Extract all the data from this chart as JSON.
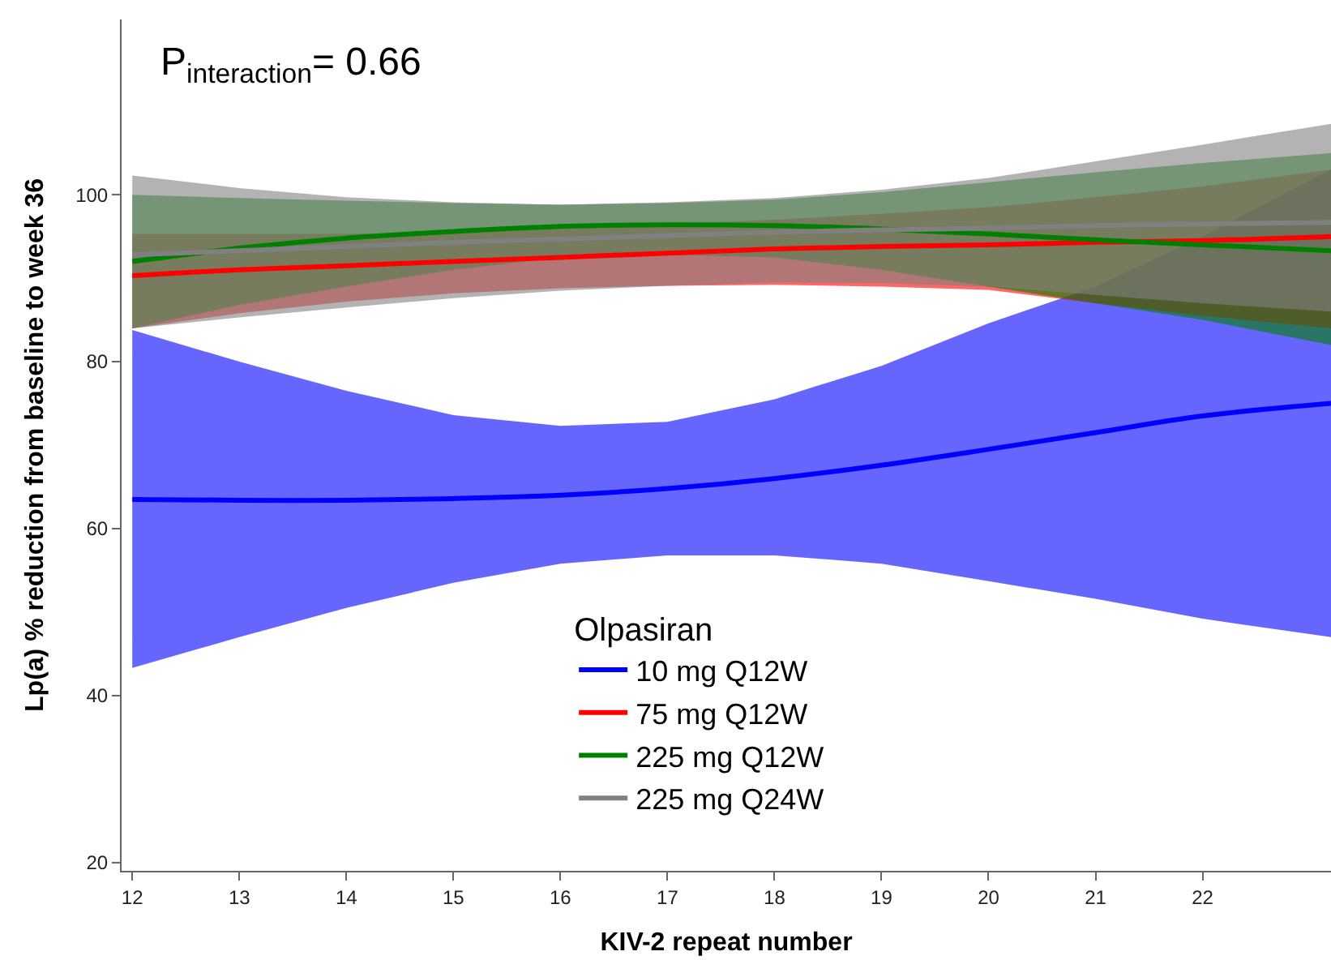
{
  "chart_data": {
    "type": "line",
    "xlabel": "KIV-2 repeat number",
    "ylabel": "Lp(a) % reduction from baseline to week 36",
    "legend_title": "Olpasiran",
    "annotations": [
      "P$_{interaction}$= 0.66"
    ],
    "x": [
      12,
      13,
      14,
      15,
      16,
      17,
      18,
      19,
      20,
      21,
      22,
      23.2
    ],
    "xlim": [
      11.9,
      23.2
    ],
    "xticks": [
      12,
      13,
      14,
      15,
      16,
      17,
      18,
      19,
      20,
      21,
      22
    ],
    "ylim": [
      19,
      121
    ],
    "yticks": [
      20,
      40,
      60,
      80,
      100
    ],
    "legend": "bottom",
    "marker": "none",
    "line_style": "solid",
    "series": [
      {
        "name": "10 mg Q12W",
        "color": "#0000ff",
        "values": [
          63.5,
          63.4,
          63.4,
          63.6,
          64,
          64.8,
          66,
          67.6,
          69.5,
          71.5,
          73.5,
          75
        ],
        "lower": [
          43.3,
          47,
          50.5,
          53.5,
          55.8,
          56.8,
          56.8,
          55.8,
          53.7,
          51.6,
          49.2,
          47
        ],
        "upper": [
          83.8,
          80,
          76.5,
          73.6,
          72.3,
          72.8,
          75.5,
          79.5,
          84.6,
          89,
          95,
          103
        ]
      },
      {
        "name": "75 mg Q12W",
        "color": "#ff0000",
        "values": [
          90.3,
          91,
          91.5,
          92,
          92.5,
          93,
          93.5,
          93.8,
          94,
          94.3,
          94.5,
          95
        ],
        "lower": [
          84,
          85.8,
          87.2,
          88.2,
          88.8,
          89.1,
          89.2,
          89,
          88.6,
          87,
          85.5,
          84
        ],
        "upper": [
          95.3,
          95.3,
          95.3,
          95.6,
          96,
          96.5,
          97,
          97.7,
          98.5,
          99.7,
          101,
          103
        ]
      },
      {
        "name": "225 mg Q12W",
        "color": "#008000",
        "values": [
          92,
          93.6,
          94.8,
          95.6,
          96.2,
          96.4,
          96.3,
          95.9,
          95.3,
          94.6,
          94,
          93.3
        ],
        "lower": [
          84,
          86.8,
          89,
          91,
          92.5,
          92.8,
          92.5,
          91,
          89,
          87,
          85,
          82
        ],
        "upper": [
          100,
          99.6,
          99.3,
          99,
          98.8,
          99,
          99.4,
          100.3,
          101.5,
          102.7,
          103.8,
          105
        ]
      },
      {
        "name": "225 mg Q24W",
        "color": "#808080",
        "values": [
          92.8,
          93.3,
          93.8,
          94.3,
          94.7,
          95.1,
          95.5,
          95.8,
          96,
          96.3,
          96.5,
          96.7
        ],
        "lower": [
          84,
          85.3,
          86.5,
          87.6,
          88.5,
          89.1,
          89.5,
          89.4,
          89,
          88,
          87,
          86
        ],
        "upper": [
          102.3,
          100.8,
          99.7,
          99.1,
          98.8,
          99.1,
          99.6,
          100.6,
          102,
          104,
          106,
          108.5
        ]
      }
    ]
  }
}
